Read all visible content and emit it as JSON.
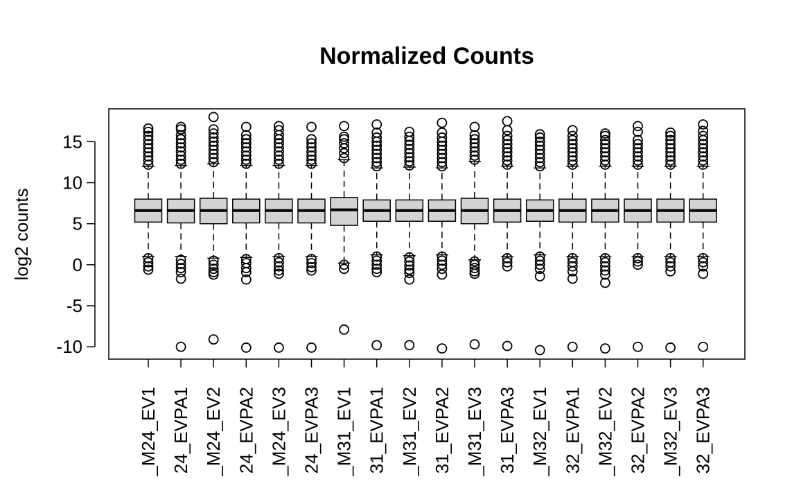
{
  "chart_data": {
    "type": "box",
    "title": "Normalized Counts",
    "xlabel": "",
    "ylabel": "log2 counts",
    "ylim": [
      -11.5,
      19
    ],
    "yticks": [
      15,
      10,
      5,
      0,
      -5,
      -10
    ],
    "ytick_labels": [
      "15",
      "10",
      "5",
      "0",
      "-5",
      "-10"
    ],
    "grid": false,
    "colors": {
      "box_fill": "#d3d3d3",
      "stroke": "#000000",
      "background": "#ffffff"
    },
    "categories": [
      "_M24_EV1",
      "24_EVPA1",
      "_M24_EV2",
      "24_EVPA2",
      "_M24_EV3",
      "24_EVPA3",
      "_M31_EV1",
      "31_EVPA1",
      "_M31_EV2",
      "31_EVPA2",
      "_M31_EV3",
      "31_EVPA3",
      "_M32_EV1",
      "32_EVPA1",
      "_M32_EV2",
      "32_EVPA2",
      "_M32_EV3",
      "32_EVPA3"
    ],
    "boxes": [
      {
        "q1": 5.2,
        "median": 6.6,
        "q3": 8.0,
        "whisker_low": 1.0,
        "whisker_high": 12.0,
        "outliers_high": [
          12.2,
          12.7,
          13.2,
          13.7,
          14.2,
          14.7,
          15.2,
          15.7,
          16.2,
          16.6
        ],
        "outliers_low": [
          0.8,
          0.3,
          -0.2,
          -0.6
        ]
      },
      {
        "q1": 5.1,
        "median": 6.6,
        "q3": 8.0,
        "whisker_low": 1.0,
        "whisker_high": 12.1,
        "outliers_high": [
          12.3,
          12.8,
          13.3,
          13.8,
          14.3,
          14.8,
          15.3,
          15.8,
          16.5,
          16.8
        ],
        "outliers_low": [
          0.6,
          0.1,
          -0.4,
          -0.9,
          -1.7,
          -10.0
        ]
      },
      {
        "q1": 5.0,
        "median": 6.6,
        "q3": 8.1,
        "whisker_low": 0.8,
        "whisker_high": 12.3,
        "outliers_high": [
          12.5,
          13.0,
          13.5,
          14.0,
          14.5,
          15.0,
          15.5,
          16.0,
          16.5,
          18.0
        ],
        "outliers_low": [
          0.5,
          0.0,
          -0.5,
          -0.9,
          -1.2,
          -9.1
        ]
      },
      {
        "q1": 5.1,
        "median": 6.6,
        "q3": 8.0,
        "whisker_low": 0.9,
        "whisker_high": 12.1,
        "outliers_high": [
          12.3,
          12.8,
          13.3,
          13.8,
          14.3,
          14.8,
          15.3,
          15.8,
          16.8
        ],
        "outliers_low": [
          0.7,
          0.2,
          -0.4,
          -0.9,
          -1.8,
          -10.1
        ]
      },
      {
        "q1": 5.1,
        "median": 6.6,
        "q3": 8.0,
        "whisker_low": 1.0,
        "whisker_high": 12.1,
        "outliers_high": [
          12.3,
          12.8,
          13.3,
          13.8,
          14.3,
          14.8,
          15.3,
          15.8,
          16.4,
          16.9
        ],
        "outliers_low": [
          0.8,
          0.3,
          -0.2,
          -0.7,
          -1.1,
          -10.1
        ]
      },
      {
        "q1": 5.1,
        "median": 6.6,
        "q3": 8.0,
        "whisker_low": 1.0,
        "whisker_high": 12.1,
        "outliers_high": [
          12.3,
          12.8,
          13.3,
          13.8,
          14.3,
          14.8,
          15.3,
          16.8
        ],
        "outliers_low": [
          0.7,
          0.2,
          -0.3,
          -0.7,
          -10.1
        ]
      },
      {
        "q1": 4.8,
        "median": 6.7,
        "q3": 8.2,
        "whisker_low": 0.2,
        "whisker_high": 12.8,
        "outliers_high": [
          13.0,
          13.6,
          14.2,
          14.8,
          15.3,
          15.6,
          16.9
        ],
        "outliers_low": [
          0.0,
          -0.5,
          -7.9
        ]
      },
      {
        "q1": 5.3,
        "median": 6.6,
        "q3": 7.9,
        "whisker_low": 1.2,
        "whisker_high": 11.8,
        "outliers_high": [
          12.0,
          12.5,
          13.0,
          13.5,
          14.0,
          14.5,
          15.0,
          15.5,
          16.1,
          17.1
        ],
        "outliers_low": [
          1.0,
          0.5,
          0.0,
          -0.5,
          -0.9,
          -9.8
        ]
      },
      {
        "q1": 5.3,
        "median": 6.6,
        "q3": 7.9,
        "whisker_low": 1.1,
        "whisker_high": 11.9,
        "outliers_high": [
          12.1,
          12.6,
          13.1,
          13.6,
          14.1,
          14.6,
          15.1,
          15.6,
          16.2
        ],
        "outliers_low": [
          0.9,
          0.4,
          -0.1,
          -0.6,
          -1.0,
          -1.8,
          -9.8
        ]
      },
      {
        "q1": 5.3,
        "median": 6.6,
        "q3": 7.9,
        "whisker_low": 1.2,
        "whisker_high": 11.8,
        "outliers_high": [
          12.0,
          12.5,
          13.0,
          13.5,
          14.0,
          14.5,
          15.0,
          15.5,
          16.1,
          17.3
        ],
        "outliers_low": [
          1.0,
          0.5,
          0.0,
          -0.5,
          -1.2,
          -10.2
        ]
      },
      {
        "q1": 5.0,
        "median": 6.6,
        "q3": 8.1,
        "whisker_low": 0.6,
        "whisker_high": 12.6,
        "outliers_high": [
          12.8,
          13.3,
          13.8,
          14.3,
          14.8,
          15.3,
          15.8,
          16.8
        ],
        "outliers_low": [
          0.4,
          0.0,
          -0.4,
          -0.8,
          -1.1,
          -9.7
        ]
      },
      {
        "q1": 5.2,
        "median": 6.6,
        "q3": 8.0,
        "whisker_low": 1.0,
        "whisker_high": 12.0,
        "outliers_high": [
          12.2,
          12.7,
          13.2,
          13.7,
          14.2,
          14.7,
          15.2,
          15.7,
          16.4,
          17.5
        ],
        "outliers_low": [
          0.8,
          0.3,
          -0.2,
          -9.9
        ]
      },
      {
        "q1": 5.3,
        "median": 6.6,
        "q3": 7.9,
        "whisker_low": 1.2,
        "whisker_high": 11.8,
        "outliers_high": [
          12.0,
          12.5,
          13.0,
          13.5,
          14.0,
          14.5,
          15.0,
          15.5,
          15.9
        ],
        "outliers_low": [
          1.0,
          0.5,
          0.0,
          -0.5,
          -1.4,
          -10.4
        ]
      },
      {
        "q1": 5.2,
        "median": 6.6,
        "q3": 8.0,
        "whisker_low": 1.0,
        "whisker_high": 12.0,
        "outliers_high": [
          12.2,
          12.7,
          13.2,
          13.7,
          14.2,
          14.7,
          15.2,
          15.7,
          16.4
        ],
        "outliers_low": [
          0.8,
          0.3,
          -0.2,
          -0.8,
          -1.7,
          -10.0
        ]
      },
      {
        "q1": 5.2,
        "median": 6.6,
        "q3": 8.0,
        "whisker_low": 1.0,
        "whisker_high": 12.0,
        "outliers_high": [
          12.2,
          12.7,
          13.2,
          13.7,
          14.2,
          14.7,
          15.2,
          15.7,
          16.0
        ],
        "outliers_low": [
          0.8,
          0.3,
          -0.2,
          -0.7,
          -1.2,
          -2.2,
          -10.2
        ]
      },
      {
        "q1": 5.2,
        "median": 6.6,
        "q3": 8.0,
        "whisker_low": 1.0,
        "whisker_high": 12.0,
        "outliers_high": [
          12.2,
          12.7,
          13.2,
          13.7,
          14.2,
          14.7,
          15.2,
          16.2,
          16.9
        ],
        "outliers_low": [
          0.8,
          0.4,
          0.0,
          -10.0
        ]
      },
      {
        "q1": 5.2,
        "median": 6.6,
        "q3": 8.0,
        "whisker_low": 1.0,
        "whisker_high": 12.0,
        "outliers_high": [
          12.2,
          12.7,
          13.2,
          13.7,
          14.2,
          14.7,
          15.2,
          15.7,
          16.1
        ],
        "outliers_low": [
          0.8,
          0.3,
          -0.2,
          -0.8,
          -10.1
        ]
      },
      {
        "q1": 5.2,
        "median": 6.6,
        "q3": 8.0,
        "whisker_low": 1.0,
        "whisker_high": 12.0,
        "outliers_high": [
          12.2,
          12.7,
          13.2,
          13.7,
          14.2,
          14.7,
          15.2,
          15.7,
          16.3,
          17.1
        ],
        "outliers_low": [
          0.8,
          0.3,
          -0.2,
          -1.1,
          -10.0
        ]
      }
    ]
  }
}
